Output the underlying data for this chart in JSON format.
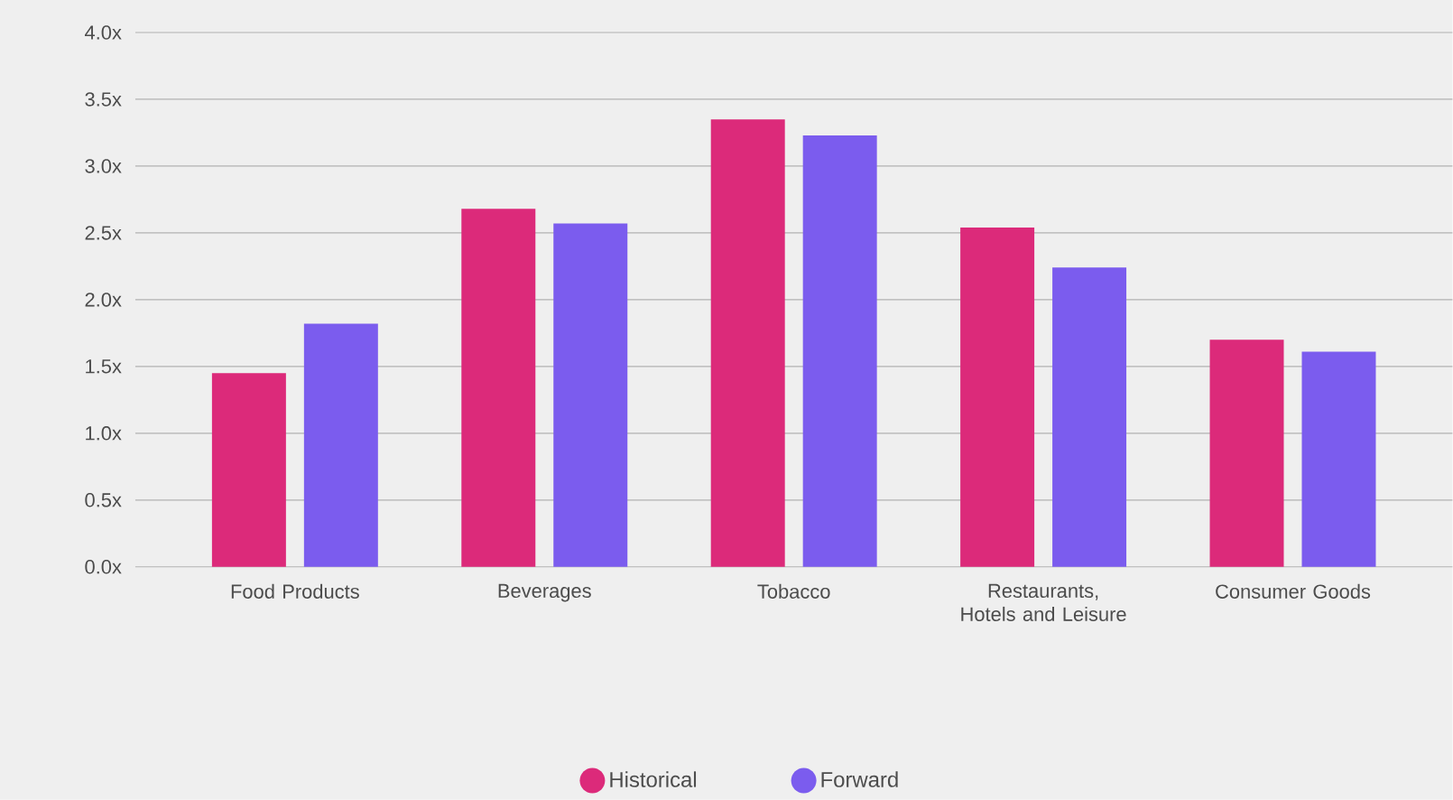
{
  "chart_data": {
    "type": "bar",
    "categories": [
      "Food Products",
      "Beverages",
      "Tobacco",
      "Restaurants, Hotels and Leisure",
      "Consumer Goods"
    ],
    "series": [
      {
        "name": "Historical",
        "color": "#dc2a7a",
        "values": [
          1.45,
          2.68,
          3.35,
          2.54,
          1.7
        ]
      },
      {
        "name": "Forward",
        "color": "#7b5cee",
        "values": [
          1.82,
          2.57,
          3.23,
          2.24,
          1.61
        ]
      }
    ],
    "ylim": [
      0,
      4
    ],
    "yticks": [
      {
        "value": 0,
        "label": "0.0x"
      },
      {
        "value": 0.5,
        "label": "0.5x"
      },
      {
        "value": 1,
        "label": "1.0x"
      },
      {
        "value": 1.5,
        "label": "1.5x"
      },
      {
        "value": 2,
        "label": "2.0x"
      },
      {
        "value": 2.5,
        "label": "2.5x"
      },
      {
        "value": 3,
        "label": "3.0x"
      },
      {
        "value": 3.5,
        "label": "3.5x"
      },
      {
        "value": 4,
        "label": "4.0x"
      }
    ],
    "grid": "y",
    "legend": "bottom",
    "marker": "circle"
  }
}
